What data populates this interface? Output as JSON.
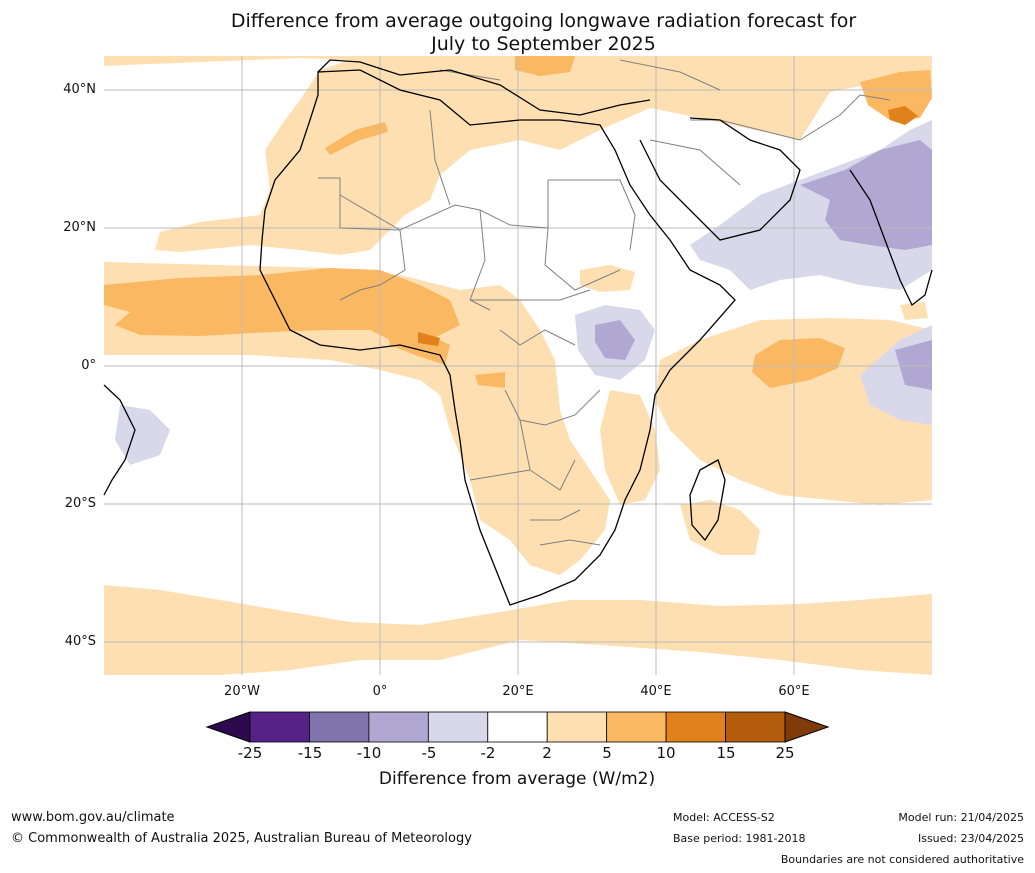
{
  "title_line1": "Difference from average outgoing longwave radiation forecast for",
  "title_line2": "July to September 2025",
  "lat_ticks": [
    "40°N",
    "20°N",
    "0°",
    "20°S",
    "40°S"
  ],
  "lon_ticks": [
    "20°W",
    "0°",
    "20°E",
    "40°E",
    "60°E"
  ],
  "colorbar": {
    "labels": [
      "-25",
      "-15",
      "-10",
      "-5",
      "-2",
      "2",
      "5",
      "10",
      "15",
      "25"
    ],
    "colors": [
      "#2d0a4e",
      "#562288",
      "#8074ad",
      "#b0a8d2",
      "#d9d8ea",
      "#ffffff",
      "#fddfb2",
      "#fbb862",
      "#e0811b",
      "#b35c0b",
      "#7f3b08"
    ],
    "title": "Difference from average (W/m2)"
  },
  "footer": {
    "url": "www.bom.gov.au/climate",
    "copyright": "© Commonwealth of Australia 2025, Australian Bureau of Meteorology",
    "model": "Model: ACCESS-S2",
    "base_period": "Base period: 1981-2018",
    "model_run": "Model run: 21/04/2025",
    "issued": "Issued: 23/04/2025",
    "disclaimer": "Boundaries are not considered authoritative"
  }
}
